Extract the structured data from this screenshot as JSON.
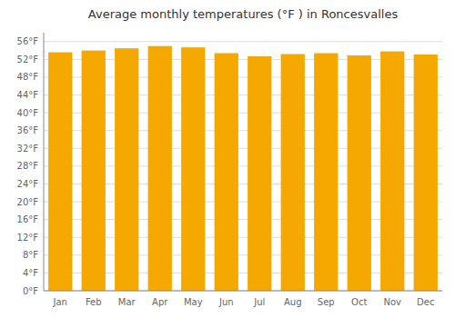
{
  "chart_data": {
    "type": "bar",
    "title": "Average monthly temperatures (°F ) in Roncesvalles",
    "categories": [
      "Jan",
      "Feb",
      "Mar",
      "Apr",
      "May",
      "Jun",
      "Jul",
      "Aug",
      "Sep",
      "Oct",
      "Nov",
      "Dec"
    ],
    "values": [
      53.6,
      54.0,
      54.5,
      55.0,
      54.7,
      53.4,
      52.7,
      53.2,
      53.4,
      52.9,
      53.8,
      53.1
    ],
    "color": "#F5A800",
    "ylim": [
      0,
      58
    ],
    "yticks": [
      {
        "value": 0,
        "label": "0°F"
      },
      {
        "value": 4,
        "label": "4°F"
      },
      {
        "value": 8,
        "label": "8°F"
      },
      {
        "value": 12,
        "label": "12°F"
      },
      {
        "value": 16,
        "label": "16°F"
      },
      {
        "value": 20,
        "label": "20°F"
      },
      {
        "value": 24,
        "label": "24°F"
      },
      {
        "value": 28,
        "label": "28°F"
      },
      {
        "value": 32,
        "label": "32°F"
      },
      {
        "value": 36,
        "label": "36°F"
      },
      {
        "value": 40,
        "label": "40°F"
      },
      {
        "value": 44,
        "label": "44°F"
      },
      {
        "value": 48,
        "label": "48°F"
      },
      {
        "value": 52,
        "label": "52°F"
      },
      {
        "value": 56,
        "label": "56°F"
      }
    ],
    "grid": true
  }
}
